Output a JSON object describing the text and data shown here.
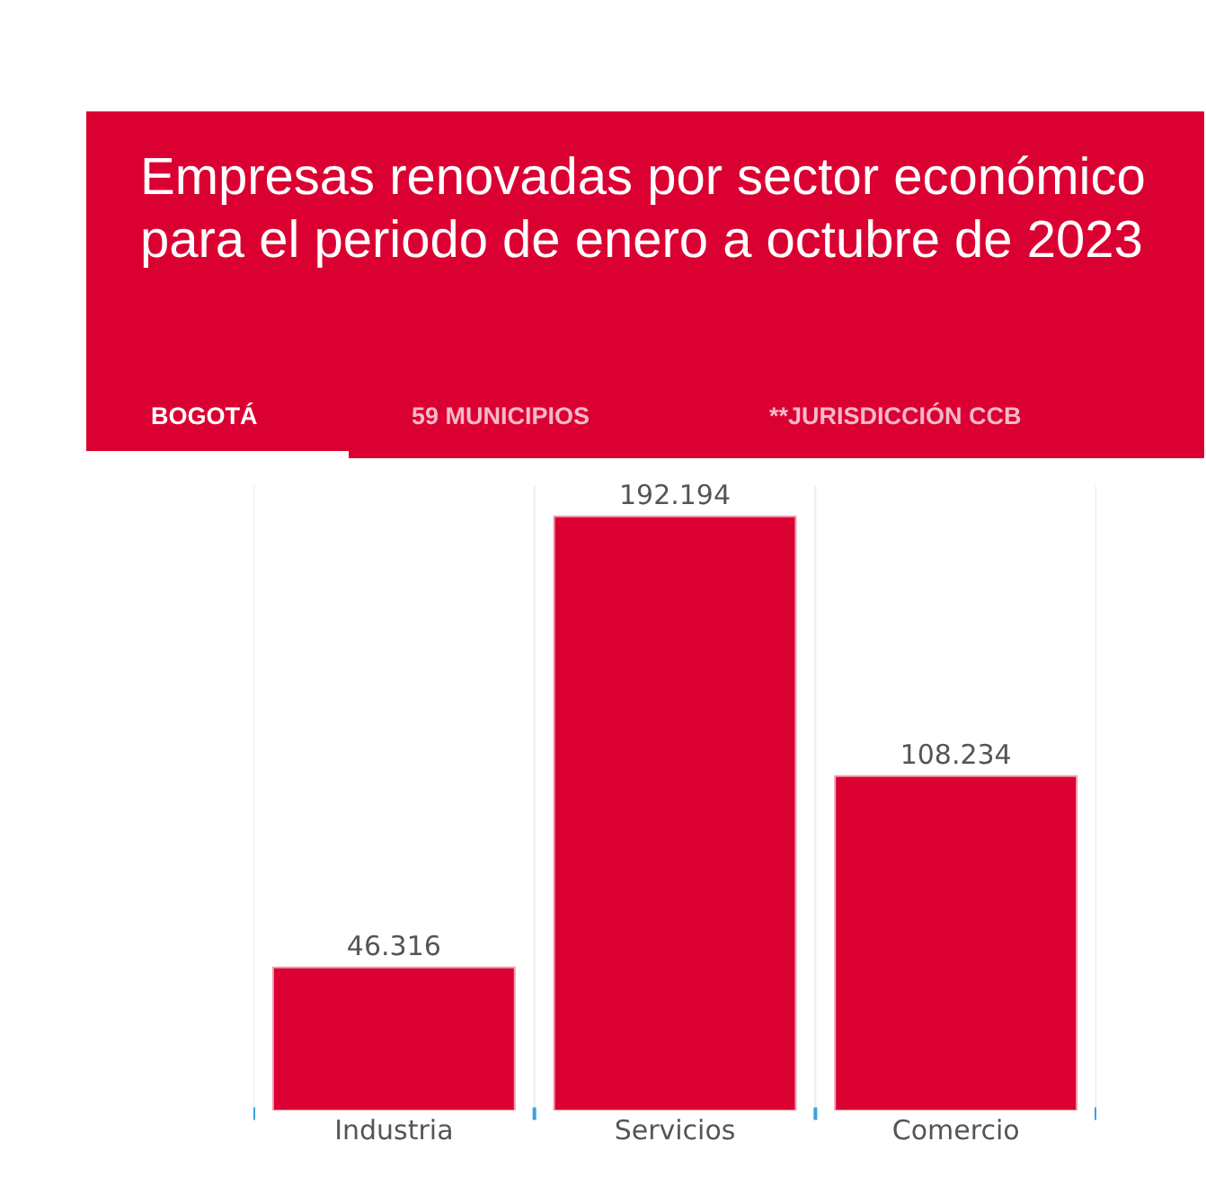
{
  "chart_data": {
    "type": "bar",
    "title": "Empresas renovadas por sector económico para el periodo de enero a octubre de 2023",
    "annotations": [
      "BOGOTÁ",
      "59 MUNICIPIOS",
      "**JURISDICCIÓN CCB"
    ],
    "categories": [
      "Industria",
      "Servicios",
      "Comercio"
    ],
    "values": [
      46316,
      192194,
      108234
    ],
    "value_labels": [
      "46.316",
      "192.194",
      "108.234"
    ],
    "color": "#db0032",
    "grid": "x",
    "legend": false
  }
}
